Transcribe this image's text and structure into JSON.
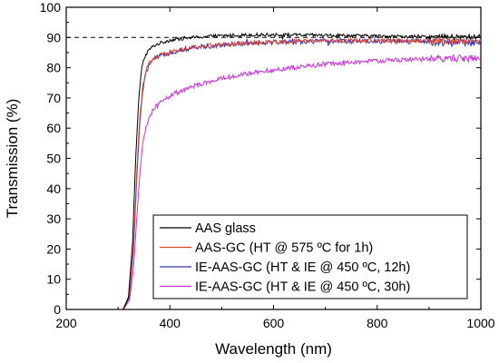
{
  "chart_data": {
    "type": "line",
    "xlabel": "Wavelength (nm)",
    "ylabel": "Transmission (%)",
    "xlim": [
      200,
      1000
    ],
    "ylim": [
      0,
      100
    ],
    "x_ticks": [
      200,
      400,
      600,
      800,
      1000
    ],
    "y_ticks": [
      0,
      10,
      20,
      30,
      40,
      50,
      60,
      70,
      80,
      90,
      100
    ],
    "grid": false,
    "legend_position": "bottom-right",
    "reference_line": {
      "y": 90,
      "style": "dashed",
      "color": "#000000"
    },
    "series": [
      {
        "name": "AAS glass",
        "color": "#000000",
        "noise": 0.55,
        "x": [
          200,
          310,
          320,
          328,
          334,
          340,
          345,
          350,
          356,
          362,
          370,
          380,
          400,
          430,
          470,
          520,
          560,
          600,
          700,
          800,
          900,
          960,
          1000
        ],
        "y": [
          0,
          0,
          4,
          22,
          50,
          70,
          79,
          83,
          85,
          86.3,
          87.3,
          88.1,
          89.1,
          89.8,
          90.3,
          90.7,
          90.9,
          90.9,
          90.7,
          90.5,
          90.2,
          90.1,
          90.3
        ]
      },
      {
        "name": "AAS-GC (HT @ 575 ºC for 1h)",
        "color": "#e0442c",
        "noise": 0.7,
        "x": [
          200,
          310,
          322,
          330,
          336,
          342,
          348,
          354,
          360,
          370,
          380,
          400,
          430,
          470,
          520,
          560,
          600,
          700,
          800,
          900,
          960,
          1000
        ],
        "y": [
          0,
          0,
          5,
          22,
          45,
          64,
          74,
          79,
          81.5,
          83,
          84,
          85.1,
          86.3,
          87.2,
          87.9,
          88.3,
          88.6,
          88.9,
          89,
          89,
          88.9,
          88.7
        ]
      },
      {
        "name": "IE-AAS-GC (HT & IE @ 450 ºC, 12h)",
        "color": "#3333bb",
        "noise": 0.8,
        "x": [
          200,
          310,
          322,
          330,
          336,
          342,
          348,
          354,
          360,
          370,
          380,
          400,
          430,
          470,
          520,
          560,
          600,
          700,
          800,
          900,
          960,
          1000
        ],
        "y": [
          0,
          0,
          4,
          20,
          43,
          62,
          73,
          78.5,
          81,
          82.8,
          83.8,
          85,
          86.2,
          87.1,
          87.8,
          88.2,
          88.5,
          88.8,
          88.8,
          88.6,
          88.2,
          88
        ]
      },
      {
        "name": "IE-AAS-GC (HT & IE @ 450 ºC, 30h)",
        "color": "#cc33dd",
        "noise": 0.75,
        "x": [
          200,
          310,
          322,
          330,
          336,
          342,
          348,
          354,
          360,
          366,
          375,
          390,
          410,
          440,
          480,
          520,
          560,
          600,
          700,
          800,
          900,
          960,
          1000
        ],
        "y": [
          0,
          0,
          3,
          14,
          30,
          45,
          55,
          60.5,
          63.5,
          65.5,
          67.5,
          69.6,
          71.5,
          73.5,
          75.6,
          77.1,
          78.3,
          79.3,
          81.2,
          82.3,
          82.9,
          83.1,
          83.2
        ]
      }
    ]
  }
}
